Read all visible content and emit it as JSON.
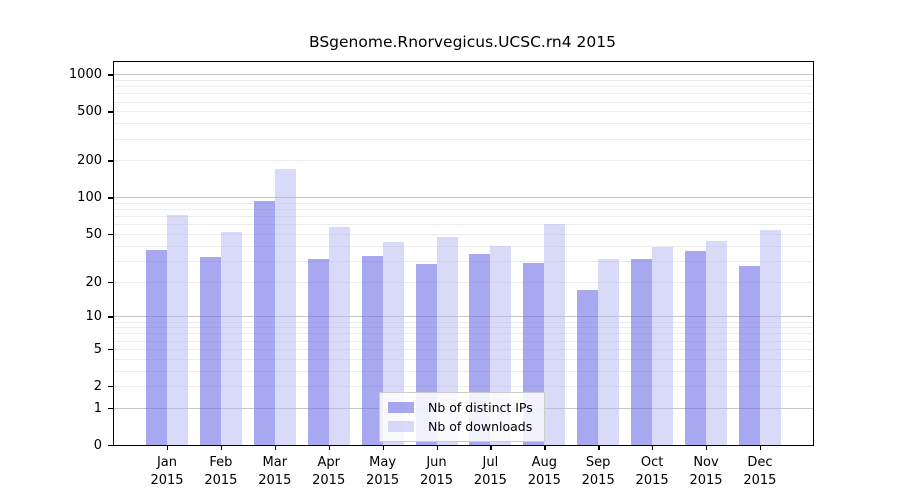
{
  "chart_data": {
    "type": "bar",
    "title": "BSgenome.Rnorvegicus.UCSC.rn4 2015",
    "categories": [
      "Jan",
      "Feb",
      "Mar",
      "Apr",
      "May",
      "Jun",
      "Jul",
      "Aug",
      "Sep",
      "Oct",
      "Nov",
      "Dec"
    ],
    "year_label": "2015",
    "series": [
      {
        "name": "Nb of distinct IPs",
        "color": "rgba(110,110,230,0.60)",
        "color_hex_on_white": "#a8a8f0",
        "values": [
          37,
          32,
          93,
          31,
          33,
          28,
          34,
          29,
          17,
          31,
          36,
          27
        ]
      },
      {
        "name": "Nb of downloads",
        "color": "rgba(179,179,241,0.50)",
        "color_hex_on_white": "#d9d9f8",
        "values": [
          72,
          52,
          170,
          57,
          43,
          47,
          40,
          60,
          31,
          39,
          44,
          54
        ]
      }
    ],
    "xlabel": "",
    "ylabel": "",
    "y_ticks": [
      0,
      1,
      2,
      5,
      10,
      20,
      50,
      100,
      200,
      500,
      1000
    ],
    "ylim": [
      0,
      1000
    ],
    "y_scale": "log10(value+1)",
    "grid": "horizontal major+minor",
    "gridline_major_color": "#c7c7c7",
    "gridline_minor_color": "#ececec",
    "legend_position": "inside bottom-center",
    "background_color": "#ffffff"
  }
}
